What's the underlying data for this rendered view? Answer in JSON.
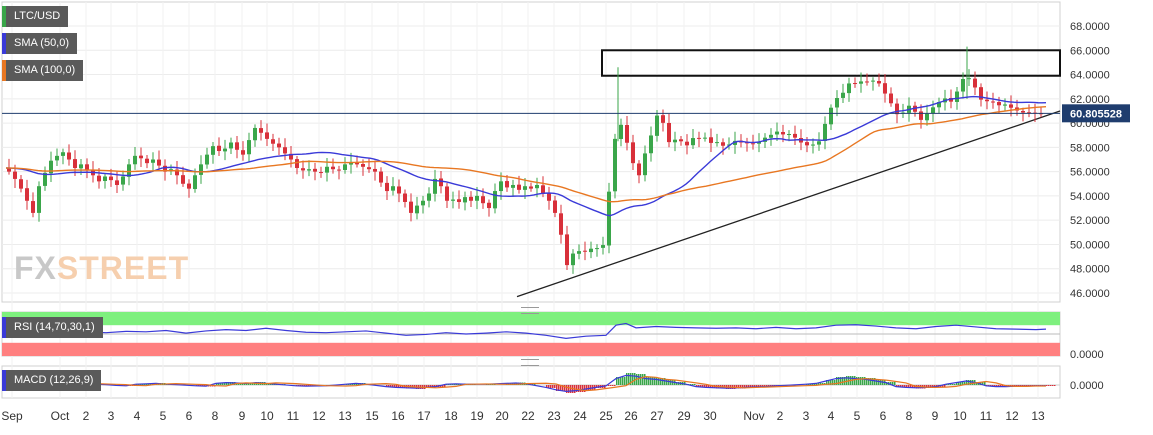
{
  "chart_data": [
    {
      "type": "candlestick",
      "symbol": "LTC/USD",
      "y_ticks": [
        "68.0000",
        "66.0000",
        "64.0000",
        "62.0000",
        "60.0000",
        "58.0000",
        "56.0000",
        "54.0000",
        "52.0000",
        "50.0000",
        "48.0000",
        "46.0000"
      ],
      "ylim": [
        45.5,
        69
      ],
      "x_ticks": [
        "Sep",
        "Oct",
        "2",
        "3",
        "4",
        "5",
        "6",
        "8",
        "9",
        "10",
        "11",
        "12",
        "13",
        "15",
        "16",
        "17",
        "18",
        "19",
        "20",
        "22",
        "23",
        "24",
        "25",
        "26",
        "27",
        "29",
        "30",
        "Nov",
        "2",
        "3",
        "4",
        "5",
        "6",
        "8",
        "9",
        "10",
        "11",
        "12",
        "13"
      ],
      "last_price": "60.805528",
      "last_price_value": 60.805528,
      "overlays": [
        {
          "name": "SMA (50,0)",
          "color": "#3a3ad8"
        },
        {
          "name": "SMA (100,0)",
          "color": "#e87722"
        }
      ],
      "annotations": {
        "resistance_box": {
          "y_low": 63.9,
          "y_high": 66.0
        },
        "trendline": {
          "start_price": 45.7,
          "end_price": 61.0
        }
      },
      "close_path": [
        [
          0,
          56.3
        ],
        [
          6,
          56.0
        ],
        [
          12,
          55.4
        ],
        [
          18,
          54.6
        ],
        [
          24,
          53.6
        ],
        [
          30,
          52.6
        ],
        [
          36,
          54.8
        ],
        [
          42,
          55.9
        ],
        [
          48,
          56.9
        ],
        [
          54,
          57.3
        ],
        [
          60,
          57.6
        ],
        [
          66,
          57.0
        ],
        [
          72,
          56.3
        ],
        [
          78,
          56.6
        ],
        [
          84,
          56.1
        ],
        [
          90,
          55.7
        ],
        [
          96,
          55.2
        ],
        [
          102,
          55.6
        ],
        [
          108,
          55.3
        ],
        [
          114,
          54.9
        ],
        [
          120,
          55.6
        ],
        [
          126,
          56.6
        ],
        [
          132,
          57.3
        ],
        [
          138,
          57.1
        ],
        [
          144,
          56.7
        ],
        [
          150,
          57.0
        ],
        [
          156,
          56.5
        ],
        [
          162,
          56.0
        ],
        [
          168,
          56.2
        ],
        [
          174,
          55.7
        ],
        [
          180,
          55.0
        ],
        [
          186,
          54.6
        ],
        [
          192,
          55.7
        ],
        [
          198,
          56.6
        ],
        [
          204,
          57.4
        ],
        [
          210,
          58.1
        ],
        [
          216,
          57.7
        ],
        [
          222,
          57.9
        ],
        [
          228,
          58.4
        ],
        [
          234,
          57.8
        ],
        [
          240,
          57.4
        ],
        [
          246,
          58.6
        ],
        [
          252,
          59.6
        ],
        [
          258,
          59.2
        ],
        [
          264,
          58.7
        ],
        [
          270,
          58.3
        ],
        [
          276,
          58.0
        ],
        [
          282,
          57.5
        ],
        [
          288,
          57.0
        ],
        [
          294,
          56.3
        ],
        [
          300,
          56.1
        ],
        [
          306,
          56.2
        ],
        [
          312,
          56.0
        ],
        [
          318,
          55.9
        ],
        [
          324,
          56.4
        ],
        [
          330,
          56.2
        ],
        [
          336,
          56.1
        ],
        [
          342,
          56.6
        ],
        [
          348,
          56.8
        ],
        [
          354,
          56.6
        ],
        [
          360,
          56.4
        ],
        [
          366,
          56.2
        ],
        [
          372,
          56.0
        ],
        [
          378,
          55.1
        ],
        [
          384,
          54.4
        ],
        [
          390,
          54.8
        ],
        [
          396,
          54.2
        ],
        [
          402,
          53.5
        ],
        [
          408,
          52.6
        ],
        [
          414,
          53.2
        ],
        [
          420,
          53.6
        ],
        [
          426,
          54.2
        ],
        [
          432,
          55.4
        ],
        [
          438,
          54.8
        ],
        [
          444,
          53.6
        ],
        [
          450,
          53.7
        ],
        [
          456,
          53.5
        ],
        [
          462,
          53.9
        ],
        [
          468,
          53.6
        ],
        [
          474,
          54.0
        ],
        [
          480,
          53.4
        ],
        [
          486,
          53.0
        ],
        [
          492,
          54.4
        ],
        [
          498,
          55.2
        ],
        [
          504,
          54.7
        ],
        [
          510,
          54.9
        ],
        [
          516,
          54.5
        ],
        [
          522,
          54.8
        ],
        [
          528,
          54.6
        ],
        [
          534,
          54.9
        ],
        [
          540,
          54.2
        ],
        [
          546,
          53.6
        ],
        [
          552,
          52.6
        ],
        [
          558,
          50.8
        ],
        [
          562,
          47.9
        ],
        [
          567,
          48.9
        ],
        [
          573,
          49.6
        ],
        [
          579,
          49.3
        ],
        [
          585,
          49.5
        ],
        [
          591,
          49.8
        ],
        [
          597,
          49.6
        ],
        [
          603,
          50.3
        ],
        [
          607,
          55.7
        ],
        [
          612,
          58.7
        ],
        [
          617,
          60.1
        ],
        [
          622,
          58.9
        ],
        [
          627,
          57.6
        ],
        [
          632,
          56.1
        ],
        [
          637,
          55.6
        ],
        [
          642,
          57.5
        ],
        [
          647,
          58.7
        ],
        [
          652,
          60.1
        ],
        [
          657,
          61.4
        ],
        [
          662,
          59.1
        ],
        [
          668,
          58.1
        ],
        [
          674,
          58.9
        ],
        [
          680,
          58.3
        ],
        [
          686,
          58.1
        ],
        [
          692,
          59.1
        ],
        [
          698,
          58.6
        ],
        [
          704,
          58.9
        ],
        [
          710,
          58.1
        ],
        [
          716,
          58.6
        ],
        [
          722,
          57.9
        ],
        [
          728,
          58.4
        ],
        [
          734,
          58.6
        ],
        [
          740,
          58.3
        ],
        [
          746,
          58.4
        ],
        [
          752,
          58.2
        ],
        [
          758,
          58.6
        ],
        [
          764,
          58.9
        ],
        [
          770,
          59.1
        ],
        [
          776,
          59.4
        ],
        [
          782,
          58.9
        ],
        [
          788,
          59.2
        ],
        [
          794,
          58.6
        ],
        [
          800,
          58.3
        ],
        [
          806,
          58.1
        ],
        [
          812,
          58.3
        ],
        [
          818,
          58.6
        ],
        [
          824,
          60.6
        ],
        [
          830,
          61.6
        ],
        [
          836,
          62.3
        ],
        [
          842,
          62.6
        ],
        [
          848,
          63.6
        ],
        [
          854,
          63.1
        ],
        [
          860,
          63.6
        ],
        [
          866,
          63.3
        ],
        [
          872,
          63.6
        ],
        [
          878,
          63.1
        ],
        [
          884,
          62.1
        ],
        [
          890,
          61.4
        ],
        [
          896,
          60.4
        ],
        [
          902,
          61.1
        ],
        [
          908,
          61.6
        ],
        [
          914,
          60.6
        ],
        [
          920,
          60.1
        ],
        [
          926,
          61.1
        ],
        [
          932,
          61.4
        ],
        [
          938,
          61.9
        ],
        [
          944,
          62.1
        ],
        [
          950,
          61.6
        ],
        [
          956,
          63.1
        ],
        [
          962,
          63.9
        ],
        [
          968,
          63.6
        ],
        [
          974,
          62.6
        ],
        [
          980,
          61.6
        ],
        [
          986,
          61.9
        ],
        [
          992,
          61.6
        ],
        [
          998,
          61.4
        ],
        [
          1004,
          61.6
        ],
        [
          1010,
          61.1
        ],
        [
          1016,
          61.0
        ],
        [
          1022,
          60.8
        ],
        [
          1028,
          60.9
        ],
        [
          1034,
          60.8
        ],
        [
          1040,
          60.8
        ]
      ]
    },
    {
      "type": "line",
      "indicator": "RSI (14,70,30,1)",
      "overbought": 70,
      "oversold": 30,
      "y_ticks": [
        "0.0000"
      ],
      "ylim": [
        0,
        100
      ],
      "values_path": [
        [
          0,
          57
        ],
        [
          20,
          56
        ],
        [
          40,
          54
        ],
        [
          60,
          56
        ],
        [
          80,
          55
        ],
        [
          100,
          53
        ],
        [
          120,
          56
        ],
        [
          140,
          55
        ],
        [
          160,
          58
        ],
        [
          180,
          52
        ],
        [
          200,
          57
        ],
        [
          220,
          60
        ],
        [
          240,
          58
        ],
        [
          260,
          63
        ],
        [
          280,
          58
        ],
        [
          300,
          54
        ],
        [
          320,
          53
        ],
        [
          340,
          55
        ],
        [
          360,
          57
        ],
        [
          380,
          52
        ],
        [
          400,
          47
        ],
        [
          420,
          49
        ],
        [
          440,
          53
        ],
        [
          460,
          50
        ],
        [
          480,
          52
        ],
        [
          500,
          55
        ],
        [
          520,
          52
        ],
        [
          540,
          47
        ],
        [
          560,
          40
        ],
        [
          580,
          45
        ],
        [
          600,
          47
        ],
        [
          610,
          70
        ],
        [
          620,
          74
        ],
        [
          630,
          64
        ],
        [
          650,
          67
        ],
        [
          670,
          65
        ],
        [
          690,
          64
        ],
        [
          710,
          63
        ],
        [
          730,
          64
        ],
        [
          750,
          62
        ],
        [
          770,
          65
        ],
        [
          790,
          62
        ],
        [
          810,
          64
        ],
        [
          830,
          70
        ],
        [
          850,
          71
        ],
        [
          870,
          68
        ],
        [
          890,
          64
        ],
        [
          910,
          62
        ],
        [
          930,
          67
        ],
        [
          950,
          70
        ],
        [
          970,
          66
        ],
        [
          990,
          62
        ],
        [
          1010,
          61
        ],
        [
          1030,
          60
        ],
        [
          1040,
          61
        ]
      ]
    },
    {
      "type": "bar",
      "indicator": "MACD (12,26,9)",
      "y_ticks": [
        "0.0000"
      ],
      "ylim": [
        -1.5,
        1.5
      ],
      "histogram_path": [
        [
          60,
          0.1
        ],
        [
          70,
          0.2
        ],
        [
          80,
          0.15
        ],
        [
          90,
          0.1
        ],
        [
          100,
          0.05
        ],
        [
          110,
          -0.05
        ],
        [
          120,
          -0.1
        ],
        [
          130,
          0.1
        ],
        [
          140,
          0.15
        ],
        [
          150,
          0.2
        ],
        [
          160,
          0.1
        ],
        [
          170,
          0.05
        ],
        [
          190,
          -0.1
        ],
        [
          200,
          -0.15
        ],
        [
          210,
          0.2
        ],
        [
          220,
          0.3
        ],
        [
          230,
          0.25
        ],
        [
          240,
          0.2
        ],
        [
          250,
          0.3
        ],
        [
          260,
          0.2
        ],
        [
          270,
          0.1
        ],
        [
          290,
          -0.1
        ],
        [
          300,
          -0.15
        ],
        [
          320,
          -0.1
        ],
        [
          340,
          0.1
        ],
        [
          350,
          0.2
        ],
        [
          360,
          0.1
        ],
        [
          380,
          -0.2
        ],
        [
          390,
          -0.3
        ],
        [
          400,
          -0.35
        ],
        [
          410,
          -0.4
        ],
        [
          420,
          -0.3
        ],
        [
          430,
          -0.2
        ],
        [
          440,
          0.1
        ],
        [
          450,
          0.15
        ],
        [
          460,
          0.1
        ],
        [
          480,
          0.1
        ],
        [
          500,
          0.2
        ],
        [
          510,
          0.25
        ],
        [
          520,
          0.15
        ],
        [
          540,
          -0.3
        ],
        [
          550,
          -0.6
        ],
        [
          560,
          -0.8
        ],
        [
          570,
          -0.7
        ],
        [
          580,
          -0.5
        ],
        [
          590,
          -0.3
        ],
        [
          600,
          -0.1
        ],
        [
          610,
          0.8
        ],
        [
          620,
          1.2
        ],
        [
          630,
          1.1
        ],
        [
          640,
          0.8
        ],
        [
          650,
          0.7
        ],
        [
          660,
          0.5
        ],
        [
          670,
          0.3
        ],
        [
          680,
          0.1
        ],
        [
          690,
          -0.2
        ],
        [
          700,
          -0.3
        ],
        [
          710,
          -0.35
        ],
        [
          720,
          -0.4
        ],
        [
          730,
          -0.35
        ],
        [
          740,
          -0.3
        ],
        [
          750,
          -0.25
        ],
        [
          760,
          -0.2
        ],
        [
          770,
          -0.1
        ],
        [
          780,
          -0.05
        ],
        [
          800,
          0.1
        ],
        [
          810,
          0.2
        ],
        [
          820,
          0.5
        ],
        [
          830,
          0.8
        ],
        [
          840,
          0.9
        ],
        [
          850,
          0.8
        ],
        [
          860,
          0.7
        ],
        [
          870,
          0.5
        ],
        [
          880,
          0.3
        ],
        [
          890,
          -0.2
        ],
        [
          900,
          -0.3
        ],
        [
          910,
          -0.35
        ],
        [
          920,
          -0.3
        ],
        [
          930,
          -0.2
        ],
        [
          940,
          0.1
        ],
        [
          950,
          0.3
        ],
        [
          960,
          0.5
        ],
        [
          970,
          0.3
        ],
        [
          980,
          -0.1
        ],
        [
          990,
          -0.2
        ],
        [
          1000,
          -0.2
        ],
        [
          1010,
          -0.15
        ],
        [
          1020,
          -0.15
        ],
        [
          1030,
          -0.1
        ],
        [
          1040,
          -0.1
        ]
      ]
    }
  ],
  "legend": {
    "symbol": "LTC/USD",
    "sma50": "SMA (50,0)",
    "sma100": "SMA (100,0)",
    "rsi": "RSI (14,70,30,1)",
    "macd": "MACD (12,26,9)"
  },
  "watermark": {
    "part1": "FX",
    "part2": "STREET"
  },
  "colors": {
    "up": "#3aa64a",
    "down": "#d8303a",
    "sma50": "#3a3ad8",
    "sma100": "#e87722",
    "price_label": "#1f3d6e",
    "rsi_overbought": "#7ef07e",
    "rsi_oversold": "#ff8080",
    "rsi_line": "#3a3ad8",
    "macd_line": "#3a3ad8",
    "signal_line": "#e87722"
  }
}
